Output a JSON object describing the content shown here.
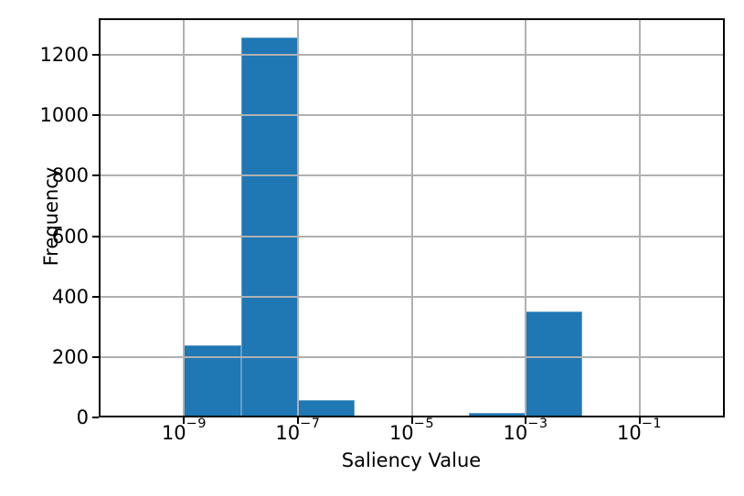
{
  "chart_data": {
    "type": "bar",
    "subtype": "histogram",
    "title": "",
    "xlabel": "Saliency Value",
    "ylabel": "Frequency",
    "x_scale": "log10",
    "bin_edges_log10": [
      -10,
      -9,
      -8,
      -7,
      -6,
      -5,
      -4,
      -3,
      -2,
      -1,
      0
    ],
    "counts": [
      0,
      238,
      1258,
      58,
      0,
      0,
      15,
      352,
      0,
      0
    ],
    "xlim_log10": [
      -10.5,
      0.5
    ],
    "ylim": [
      0,
      1321
    ],
    "x_tick_base": "10",
    "x_ticks": [
      {
        "log10": -9,
        "exponent": "−9"
      },
      {
        "log10": -7,
        "exponent": "−7"
      },
      {
        "log10": -5,
        "exponent": "−5"
      },
      {
        "log10": -3,
        "exponent": "−3"
      },
      {
        "log10": -1,
        "exponent": "−1"
      }
    ],
    "y_ticks": [
      0,
      200,
      400,
      600,
      800,
      1000,
      1200
    ],
    "grid": true,
    "grid_above_bars": true,
    "legend": null,
    "colors": {
      "bar": "#1f77b4",
      "bar_edge": "rgba(255,255,255,0.30)",
      "grid": "#b0b0b0",
      "spine": "#000000",
      "tick": "#000000",
      "text": "#000000",
      "background": "#ffffff"
    }
  }
}
